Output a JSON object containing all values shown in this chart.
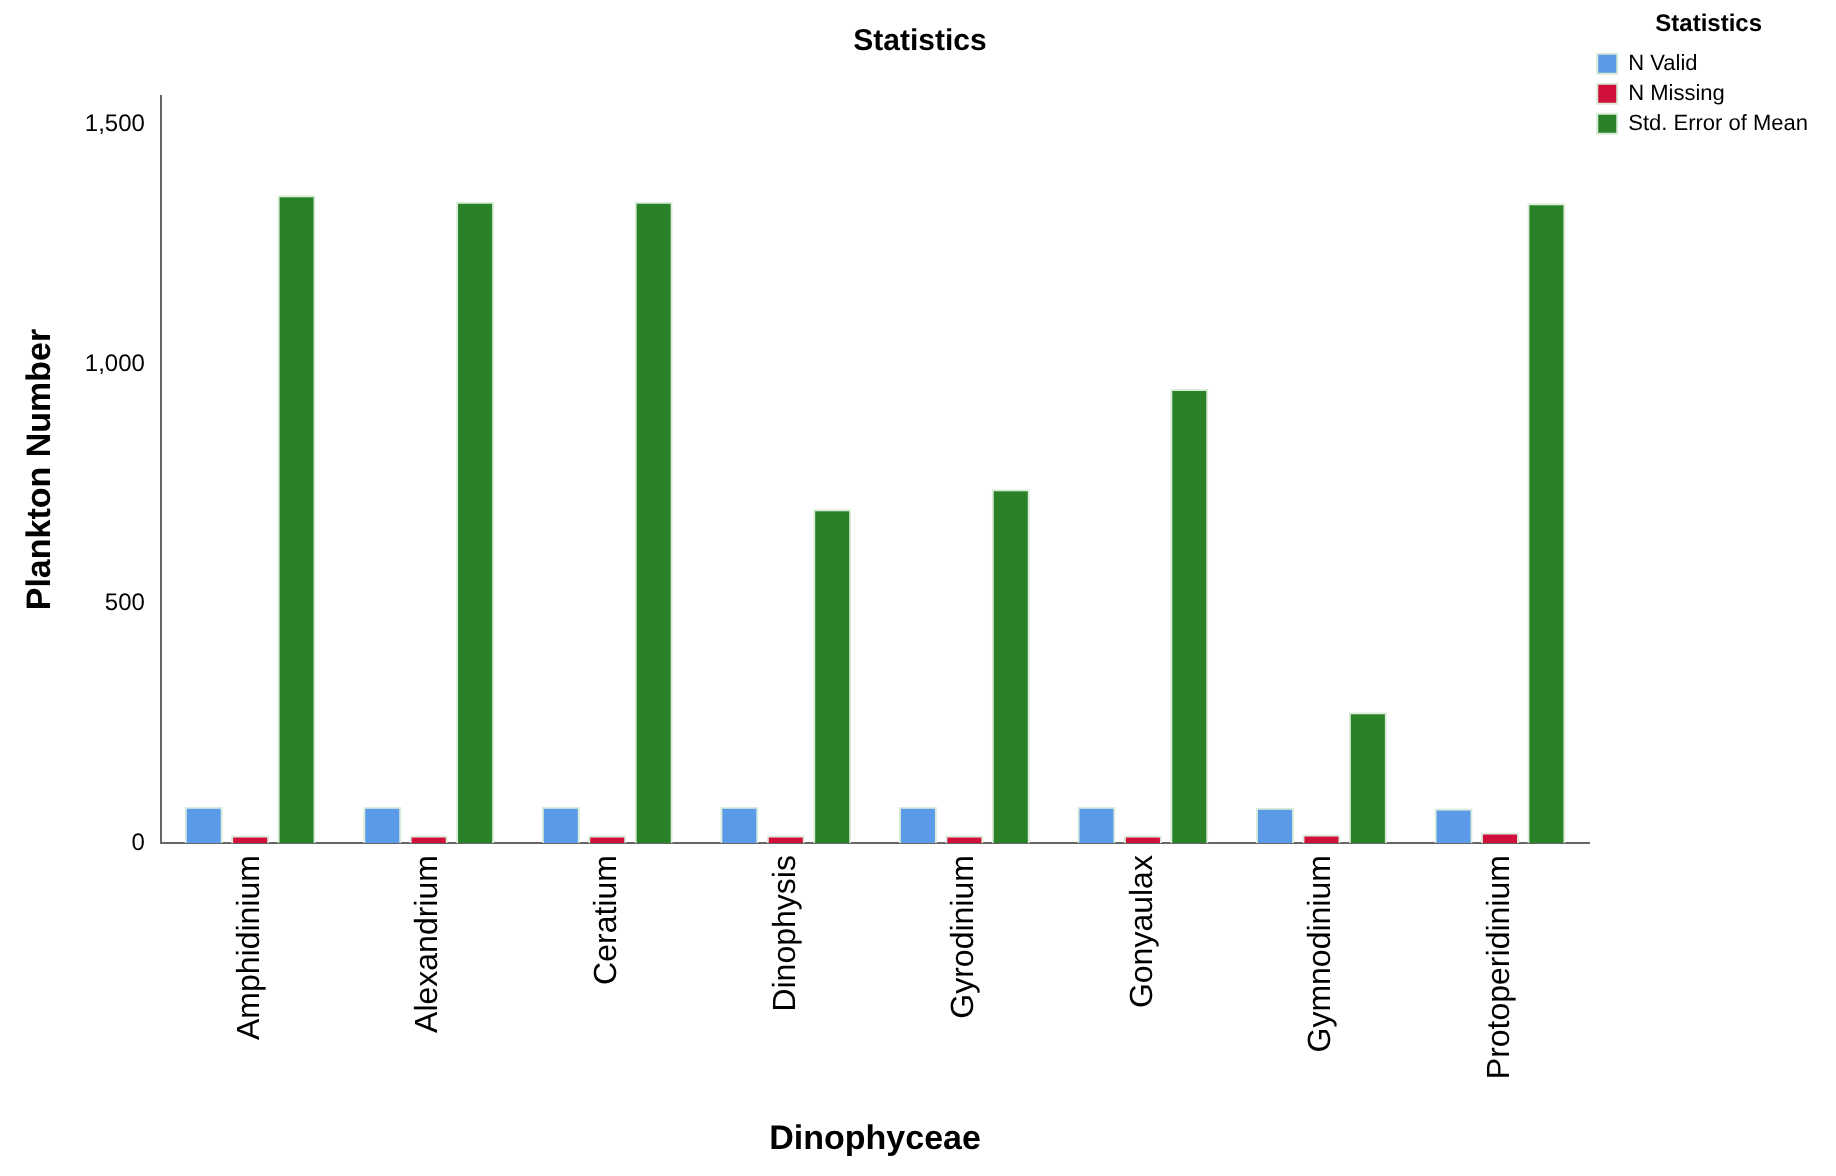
{
  "chart_data": {
    "type": "bar",
    "title": "Statistics",
    "xlabel": "Dinophyceae",
    "ylabel": "Plankton Number",
    "legend_title": "Statistics",
    "categories": [
      "Amphidinium",
      "Alexandrium",
      "Ceratium",
      "Dinophysis",
      "Gyrodinium",
      "Gonyaulax",
      "Gymnodinium",
      "Protoperidinium"
    ],
    "series": [
      {
        "name": "N Valid",
        "color": "#5a9ae6",
        "values": [
          76,
          76,
          76,
          76,
          76,
          76,
          74,
          72
        ]
      },
      {
        "name": "N Missing",
        "color": "#d0103a",
        "values": [
          16,
          16,
          16,
          16,
          16,
          16,
          18,
          22
        ]
      },
      {
        "name": "Std. Error of Mean",
        "color": "#2a8228",
        "values": [
          1353,
          1339,
          1339,
          697,
          739,
          948,
          273,
          1336
        ]
      }
    ],
    "ylim": [
      0,
      1560
    ],
    "yticks": [
      0,
      {
        "value": 500,
        "label": "500"
      },
      {
        "value": 1000,
        "label": "1,000"
      },
      {
        "value": 1500,
        "label": "1,500"
      }
    ],
    "grid": false,
    "legend": "top right"
  }
}
